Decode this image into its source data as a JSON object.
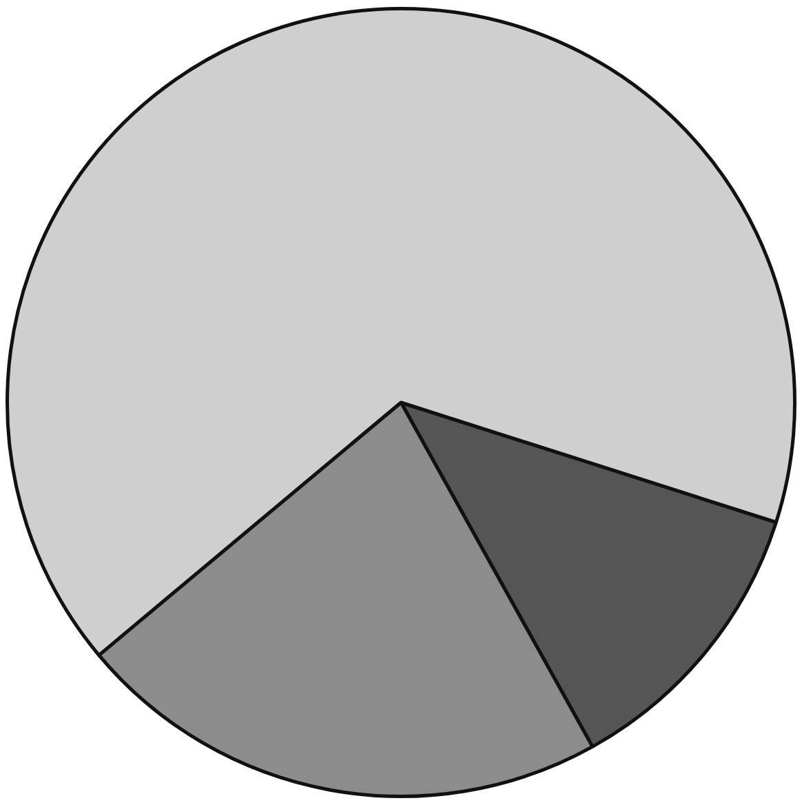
{
  "chart_data": {
    "type": "pie",
    "categories": [
      null,
      null,
      null
    ],
    "values": [
      12,
      22,
      66
    ],
    "colors": [
      "#555555",
      "#8c8c8c",
      "#cfcfcf"
    ]
  }
}
